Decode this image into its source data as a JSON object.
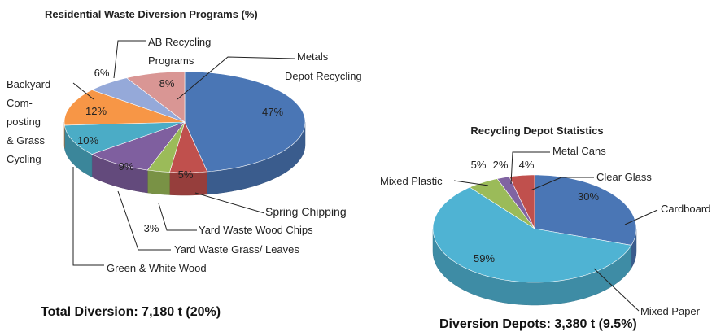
{
  "chart_data": [
    {
      "type": "pie",
      "title": "Residential Waste Diversion Programs (%)",
      "categories": [
        "Depot Recycling",
        "Spring Chipping",
        "Yard Waste Wood Chips",
        "Yard Waste Grass/ Leaves",
        "Green & White Wood",
        "Backyard\nCom-\nposting\n& Grass\nCycling",
        "AB Recycling\nPrograms",
        "Metals"
      ],
      "values": [
        47,
        5,
        3,
        9,
        10,
        12,
        6,
        8
      ],
      "value_labels": [
        "47%",
        "5%",
        "3%",
        "9%",
        "10%",
        "12%",
        "6%",
        "8%"
      ],
      "colors": [
        "#4a76b5",
        "#c0504d",
        "#9bbb59",
        "#7f5f9f",
        "#4bacc6",
        "#f79646",
        "#95a9d9",
        "#d99694"
      ],
      "caption": "Total Diversion: 7,180 t (20%)"
    },
    {
      "type": "pie",
      "title": "Recycling Depot Statistics",
      "categories": [
        "Cardboard",
        "Mixed Paper",
        "Mixed Plastic",
        "Metal Cans",
        "Clear Glass"
      ],
      "values": [
        30,
        59,
        5,
        2,
        4
      ],
      "value_labels": [
        "30%",
        "59%",
        "5%",
        "2%",
        "4%"
      ],
      "colors": [
        "#4a76b5",
        "#4fb3d3",
        "#9bbb59",
        "#8064a2",
        "#c0504d"
      ],
      "caption": "Diversion Depots: 3,380 t (9.5%)"
    }
  ]
}
